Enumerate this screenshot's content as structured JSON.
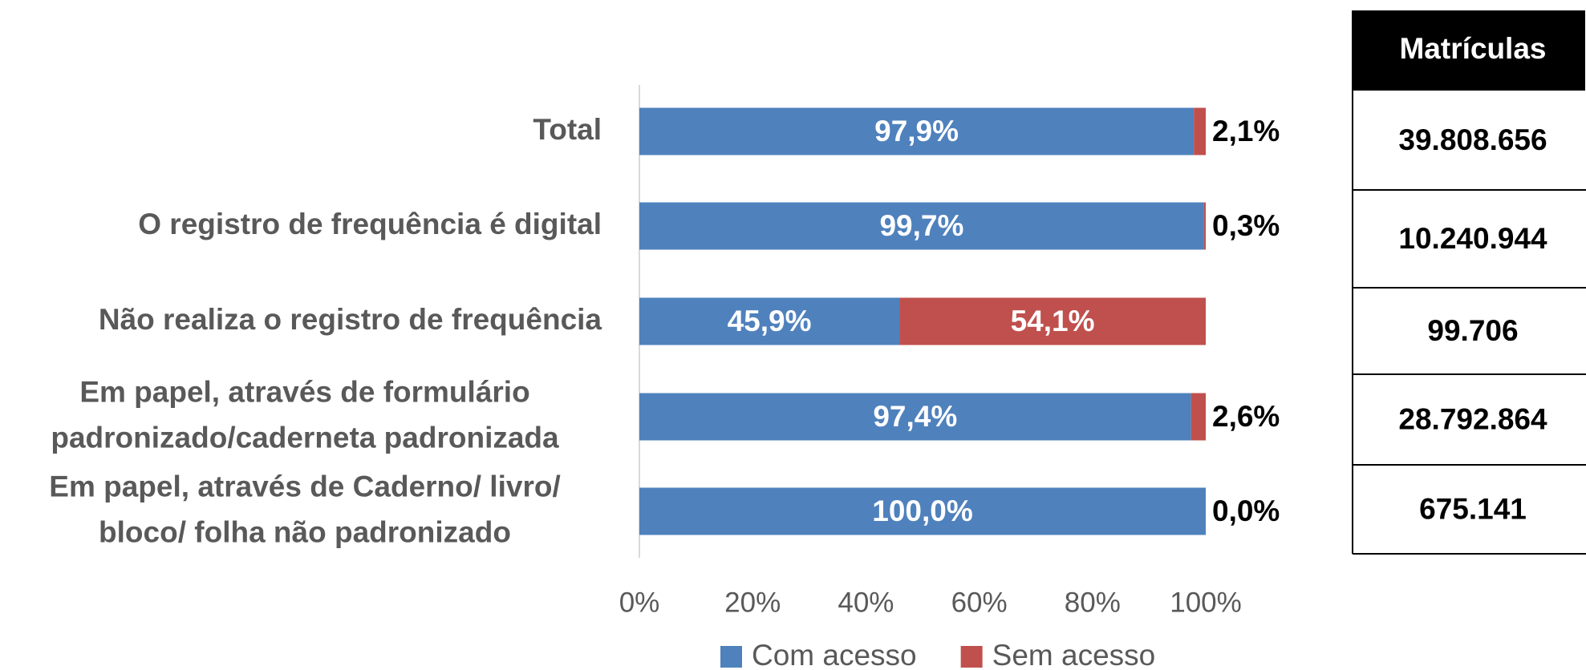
{
  "chart_data": {
    "type": "stacked_barh",
    "categories": [
      "Total",
      "O registro de frequência é digital",
      "Não realiza o registro de frequência",
      "Em papel, através de formulário\npadronizado/caderneta padronizada",
      "Em papel, através de Caderno/ livro/\nbloco/ folha não padronizado"
    ],
    "series": [
      {
        "name": "Com acesso",
        "color": "#4f81bd",
        "values": [
          97.9,
          99.7,
          45.9,
          97.4,
          100.0
        ],
        "value_labels": [
          "97,9%",
          "99,7%",
          "45,9%",
          "97,4%",
          "100,0%"
        ]
      },
      {
        "name": "Sem acesso",
        "color": "#c0504d",
        "values": [
          2.1,
          0.3,
          54.1,
          2.6,
          0.0
        ],
        "value_labels": [
          "2,1%",
          "0,3%",
          "54,1%",
          "2,6%",
          "0,0%"
        ]
      }
    ],
    "xlim": [
      0,
      100
    ],
    "xticks": [
      {
        "value": 0,
        "label": "0%"
      },
      {
        "value": 20,
        "label": "20%"
      },
      {
        "value": 40,
        "label": "40%"
      },
      {
        "value": 60,
        "label": "60%"
      },
      {
        "value": 80,
        "label": "80%"
      },
      {
        "value": 100,
        "label": "100%"
      }
    ],
    "legend": "bottom"
  },
  "table": {
    "header": "Matrículas",
    "rows": [
      "39.808.656",
      "10.240.944",
      "99.706",
      "28.792.864",
      "675.141"
    ]
  }
}
